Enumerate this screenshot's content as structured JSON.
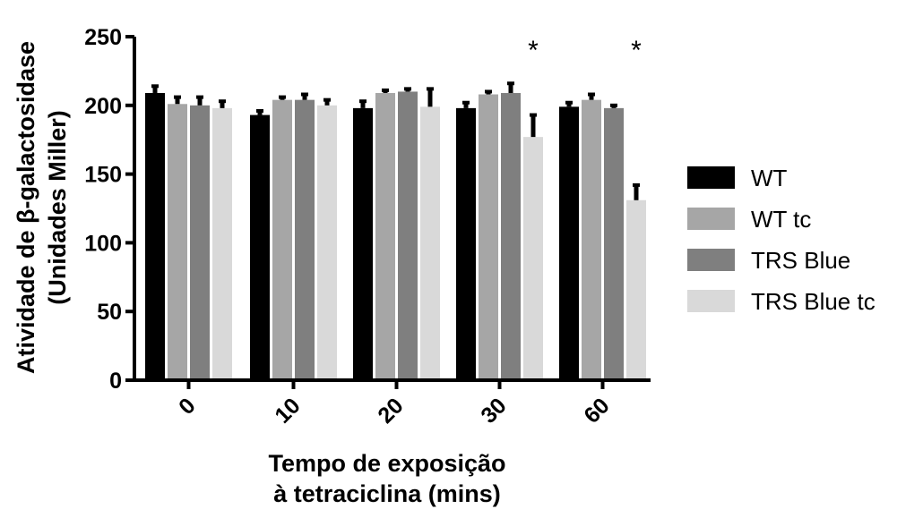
{
  "chart_data": {
    "type": "bar",
    "xlabel_lines": [
      "Tempo de exposição",
      "à tetraciclina (mins)"
    ],
    "ylabel_lines": [
      "Atividade de β-galactosidase",
      "(Unidades Miller)"
    ],
    "categories": [
      "0",
      "10",
      "20",
      "30",
      "60"
    ],
    "ylim": [
      0,
      250
    ],
    "yticks": [
      "0",
      "50",
      "100",
      "150",
      "200",
      "250"
    ],
    "ytick_values": [
      0,
      50,
      100,
      150,
      200,
      250
    ],
    "grid": false,
    "legend_position": "right",
    "series": [
      {
        "name": "WT",
        "color": "#000000",
        "values": [
          209,
          193,
          198,
          198,
          199
        ],
        "errors": [
          5,
          3,
          5,
          4,
          3
        ]
      },
      {
        "name": "WT tc",
        "color": "#a6a6a6",
        "values": [
          201,
          204,
          209,
          208,
          204
        ],
        "errors": [
          5,
          2,
          2,
          2,
          4
        ]
      },
      {
        "name": "TRS Blue",
        "color": "#7f7f7f",
        "values": [
          200,
          204,
          210,
          209,
          198
        ],
        "errors": [
          6,
          4,
          2,
          7,
          2
        ]
      },
      {
        "name": "TRS Blue tc",
        "color": "#d9d9d9",
        "values": [
          198,
          200,
          199,
          177,
          131
        ],
        "errors": [
          5,
          4,
          13,
          16,
          11
        ]
      }
    ],
    "annotations": [
      {
        "text": "*",
        "category": "30",
        "series": "TRS Blue tc"
      },
      {
        "text": "*",
        "category": "60",
        "series": "TRS Blue tc"
      }
    ]
  }
}
